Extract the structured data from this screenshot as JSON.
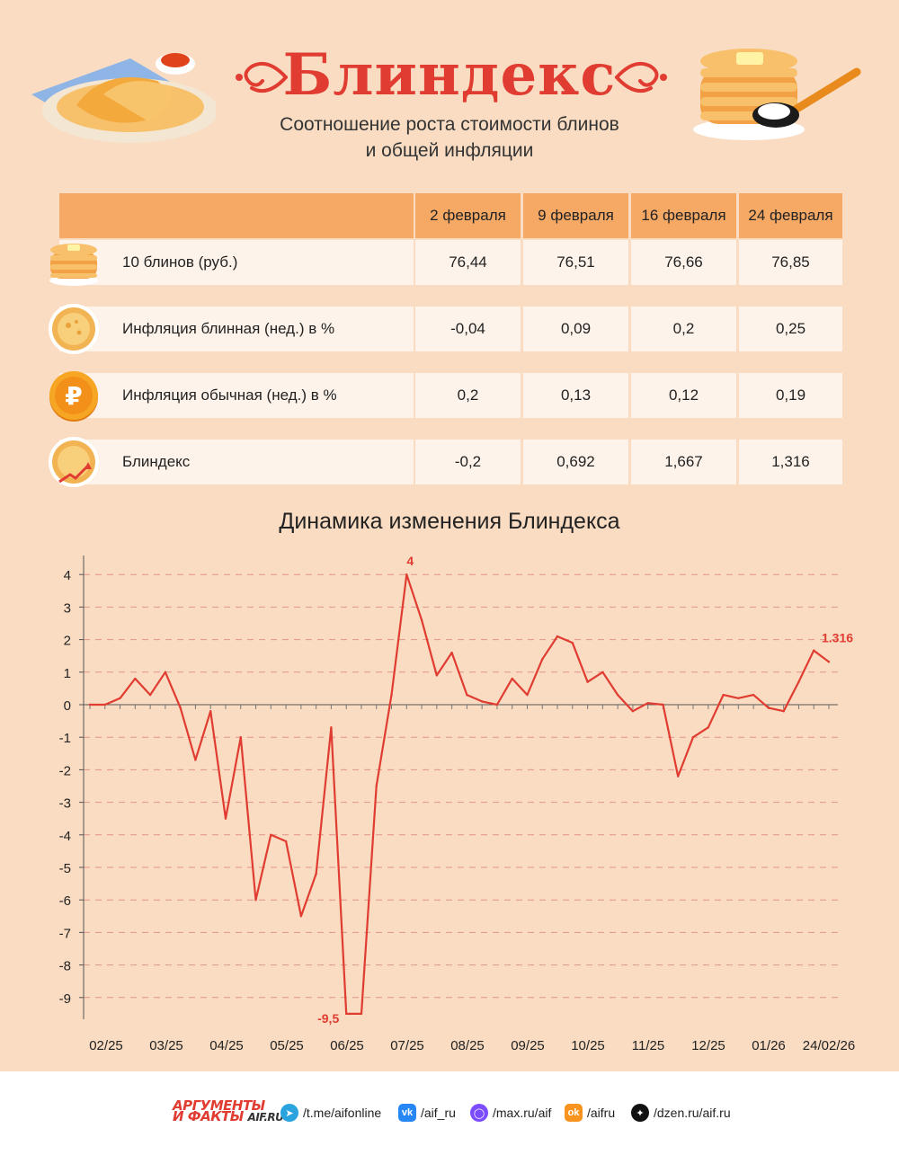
{
  "header": {
    "title": "Блиндекс",
    "subtitle_line1": "Соотношение роста стоимости блинов",
    "subtitle_line2": "и общей инфляции"
  },
  "table": {
    "columns": [
      "2 февраля",
      "9 февраля",
      "16 февраля",
      "24 февраля"
    ],
    "rows": [
      {
        "label": "10 блинов (руб.)",
        "icon": "pancake-stack-icon",
        "values": [
          "76,44",
          "76,51",
          "76,66",
          "76,85"
        ]
      },
      {
        "label": "Инфляция блинная (нед.) в %",
        "icon": "pancake-icon",
        "values": [
          "-0,04",
          "0,09",
          "0,2",
          "0,25"
        ]
      },
      {
        "label": "Инфляция обычная (нед.) в %",
        "icon": "ruble-coin-icon",
        "values": [
          "0,2",
          "0,13",
          "0,12",
          "0,19"
        ]
      },
      {
        "label": "Блиндекс",
        "icon": "pancake-growth-icon",
        "values": [
          "-0,2",
          "0,692",
          "1,667",
          "1,316"
        ]
      }
    ]
  },
  "chart_data": {
    "type": "line",
    "title": "Динамика изменения Блиндекса",
    "xlabel": "",
    "ylabel": "",
    "ylim": [
      -9.5,
      4
    ],
    "y_ticks": [
      4,
      3,
      2,
      1,
      0,
      -1,
      -2,
      -3,
      -4,
      -5,
      -6,
      -7,
      -8,
      -9
    ],
    "x_tick_labels": [
      "02/25",
      "03/25",
      "04/25",
      "05/25",
      "06/25",
      "07/25",
      "08/25",
      "09/25",
      "10/25",
      "11/25",
      "12/25",
      "01/26",
      "24/02/26"
    ],
    "grid": true,
    "line_color": "#e03c31",
    "values": [
      0,
      0,
      0.2,
      0.8,
      0.3,
      1.0,
      -0.1,
      -1.7,
      -0.2,
      -3.5,
      -1.0,
      -6.0,
      -4.0,
      -4.2,
      -6.5,
      -5.2,
      -0.7,
      -9.5,
      -9.5,
      -2.5,
      0.3,
      4,
      2.6,
      0.9,
      1.6,
      0.3,
      0.1,
      0.0,
      0.8,
      0.3,
      1.4,
      2.1,
      1.9,
      0.7,
      1.0,
      0.3,
      -0.2,
      0.05,
      0.0,
      -2.2,
      -1.0,
      -0.7,
      0.3,
      0.2,
      0.3,
      -0.1,
      -0.2,
      0.7,
      1.667,
      1.316
    ],
    "annotations": [
      {
        "text": "4",
        "index": 21
      },
      {
        "text": "-9,5",
        "index": 17
      },
      {
        "text": "1.316",
        "index": 49
      }
    ]
  },
  "footer": {
    "logo_line1": "АРГУМЕНТЫ",
    "logo_line2": "И ФАКТЫ",
    "logo_sub": "AIF.RU",
    "links": [
      {
        "icon": "telegram-icon",
        "text": "/t.me/aifonline",
        "color": "#2aa3df"
      },
      {
        "icon": "vk-icon",
        "text": "/aif_ru",
        "color": "#2787f5"
      },
      {
        "icon": "max-icon",
        "text": "/max.ru/aif",
        "color": "#7b4dff"
      },
      {
        "icon": "odnoklassniki-icon",
        "text": "/aifru",
        "color": "#f7931e"
      },
      {
        "icon": "dzen-icon",
        "text": "/dzen.ru/aif.ru",
        "color": "#111111"
      }
    ]
  }
}
